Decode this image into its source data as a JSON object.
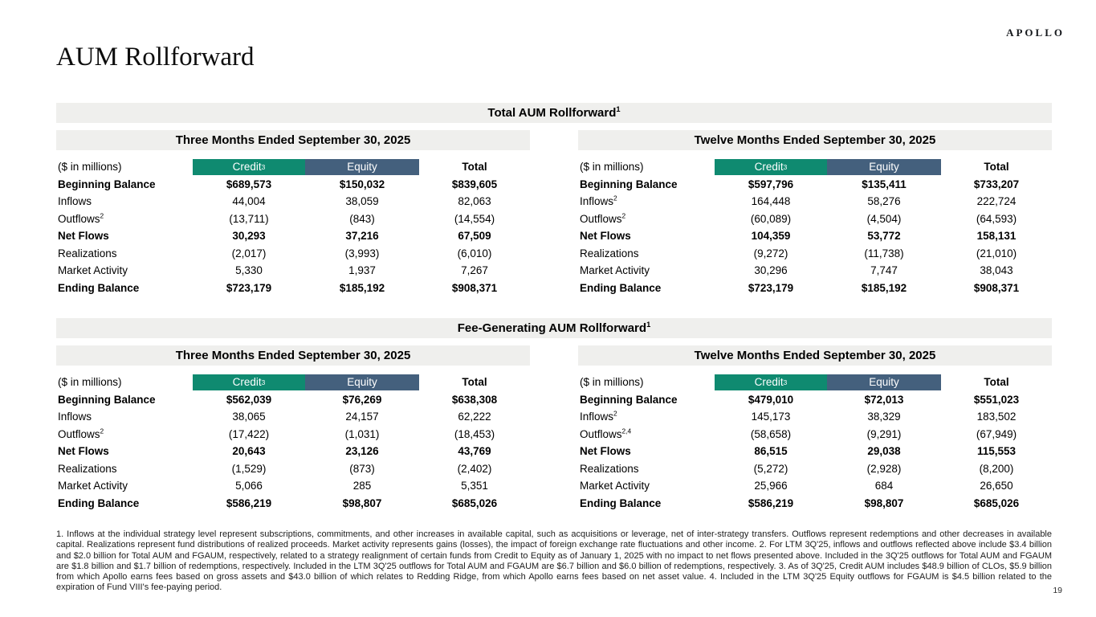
{
  "page": {
    "logo": "APOLLO",
    "title": "AUM Rollforward",
    "page_number": "19"
  },
  "colors": {
    "credit_header": "#0f8a70",
    "equity_header": "#44607d",
    "band_background": "#efefed"
  },
  "sections": [
    {
      "title": "Total AUM Rollforward",
      "title_sup": "1",
      "periods": [
        {
          "heading": "Three Months Ended September 30, 2025",
          "unit_label": "($ in millions)",
          "columns": [
            {
              "label": "Credit",
              "sup": "3"
            },
            {
              "label": "Equity",
              "sup": ""
            },
            {
              "label": "Total",
              "sup": ""
            }
          ],
          "rows": [
            {
              "label": "Beginning Balance",
              "sup": "",
              "bold": true,
              "credit": "$689,573",
              "equity": "$150,032",
              "total": "$839,605"
            },
            {
              "label": "Inflows",
              "sup": "",
              "bold": false,
              "credit": "44,004",
              "equity": "38,059",
              "total": "82,063"
            },
            {
              "label": "Outflows",
              "sup": "2",
              "bold": false,
              "credit": "(13,711)",
              "equity": "(843)",
              "total": "(14,554)"
            },
            {
              "label": "Net Flows",
              "sup": "",
              "bold": true,
              "credit": "30,293",
              "equity": "37,216",
              "total": "67,509"
            },
            {
              "label": "Realizations",
              "sup": "",
              "bold": false,
              "credit": "(2,017)",
              "equity": "(3,993)",
              "total": "(6,010)"
            },
            {
              "label": "Market Activity",
              "sup": "",
              "bold": false,
              "credit": "5,330",
              "equity": "1,937",
              "total": "7,267"
            },
            {
              "label": "Ending Balance",
              "sup": "",
              "bold": true,
              "credit": "$723,179",
              "equity": "$185,192",
              "total": "$908,371"
            }
          ]
        },
        {
          "heading": "Twelve Months Ended September 30, 2025",
          "unit_label": "($ in millions)",
          "columns": [
            {
              "label": "Credit",
              "sup": "3"
            },
            {
              "label": "Equity",
              "sup": ""
            },
            {
              "label": "Total",
              "sup": ""
            }
          ],
          "rows": [
            {
              "label": "Beginning Balance",
              "sup": "",
              "bold": true,
              "credit": "$597,796",
              "equity": "$135,411",
              "total": "$733,207"
            },
            {
              "label": "Inflows",
              "sup": "2",
              "bold": false,
              "credit": "164,448",
              "equity": "58,276",
              "total": "222,724"
            },
            {
              "label": "Outflows",
              "sup": "2",
              "bold": false,
              "credit": "(60,089)",
              "equity": "(4,504)",
              "total": "(64,593)"
            },
            {
              "label": "Net Flows",
              "sup": "",
              "bold": true,
              "credit": "104,359",
              "equity": "53,772",
              "total": "158,131"
            },
            {
              "label": "Realizations",
              "sup": "",
              "bold": false,
              "credit": "(9,272)",
              "equity": "(11,738)",
              "total": "(21,010)"
            },
            {
              "label": "Market Activity",
              "sup": "",
              "bold": false,
              "credit": "30,296",
              "equity": "7,747",
              "total": "38,043"
            },
            {
              "label": "Ending Balance",
              "sup": "",
              "bold": true,
              "credit": "$723,179",
              "equity": "$185,192",
              "total": "$908,371"
            }
          ]
        }
      ]
    },
    {
      "title": "Fee-Generating AUM Rollforward",
      "title_sup": "1",
      "periods": [
        {
          "heading": "Three Months Ended September 30, 2025",
          "unit_label": "($ in millions)",
          "columns": [
            {
              "label": "Credit",
              "sup": "3"
            },
            {
              "label": "Equity",
              "sup": ""
            },
            {
              "label": "Total",
              "sup": ""
            }
          ],
          "rows": [
            {
              "label": "Beginning Balance",
              "sup": "",
              "bold": true,
              "credit": "$562,039",
              "equity": "$76,269",
              "total": "$638,308"
            },
            {
              "label": "Inflows",
              "sup": "",
              "bold": false,
              "credit": "38,065",
              "equity": "24,157",
              "total": "62,222"
            },
            {
              "label": "Outflows",
              "sup": "2",
              "bold": false,
              "credit": "(17,422)",
              "equity": "(1,031)",
              "total": "(18,453)"
            },
            {
              "label": "Net Flows",
              "sup": "",
              "bold": true,
              "credit": "20,643",
              "equity": "23,126",
              "total": "43,769"
            },
            {
              "label": "Realizations",
              "sup": "",
              "bold": false,
              "credit": "(1,529)",
              "equity": "(873)",
              "total": "(2,402)"
            },
            {
              "label": "Market Activity",
              "sup": "",
              "bold": false,
              "credit": "5,066",
              "equity": "285",
              "total": "5,351"
            },
            {
              "label": "Ending Balance",
              "sup": "",
              "bold": true,
              "credit": "$586,219",
              "equity": "$98,807",
              "total": "$685,026"
            }
          ]
        },
        {
          "heading": "Twelve Months Ended September 30, 2025",
          "unit_label": "($ in millions)",
          "columns": [
            {
              "label": "Credit",
              "sup": "3"
            },
            {
              "label": "Equity",
              "sup": ""
            },
            {
              "label": "Total",
              "sup": ""
            }
          ],
          "rows": [
            {
              "label": "Beginning Balance",
              "sup": "",
              "bold": true,
              "credit": "$479,010",
              "equity": "$72,013",
              "total": "$551,023"
            },
            {
              "label": "Inflows",
              "sup": "2",
              "bold": false,
              "credit": "145,173",
              "equity": "38,329",
              "total": "183,502"
            },
            {
              "label": "Outflows",
              "sup": "2,4",
              "bold": false,
              "credit": "(58,658)",
              "equity": "(9,291)",
              "total": "(67,949)"
            },
            {
              "label": "Net Flows",
              "sup": "",
              "bold": true,
              "credit": "86,515",
              "equity": "29,038",
              "total": "115,553"
            },
            {
              "label": "Realizations",
              "sup": "",
              "bold": false,
              "credit": "(5,272)",
              "equity": "(2,928)",
              "total": "(8,200)"
            },
            {
              "label": "Market Activity",
              "sup": "",
              "bold": false,
              "credit": "25,966",
              "equity": "684",
              "total": "26,650"
            },
            {
              "label": "Ending Balance",
              "sup": "",
              "bold": true,
              "credit": "$586,219",
              "equity": "$98,807",
              "total": "$685,026"
            }
          ]
        }
      ]
    }
  ],
  "footnotes": "1. Inflows at the individual strategy level represent subscriptions, commitments, and other increases in available capital, such as acquisitions or leverage, net of inter-strategy transfers. Outflows represent redemptions and other decreases in available capital. Realizations represent fund distributions of realized proceeds. Market activity represents gains (losses), the impact of foreign exchange rate fluctuations and other income. 2. For LTM 3Q'25, inflows and outflows reflected above include $3.4 billion and $2.0 billion for Total AUM and FGAUM, respectively, related to a strategy realignment of certain funds from Credit to Equity as of January 1, 2025 with no impact to net flows presented above. Included in the 3Q'25 outflows for Total AUM and FGAUM are $1.8 billion and $1.7 billion of redemptions, respectively. Included in the LTM 3Q'25 outflows for Total AUM and FGAUM are $6.7 billion and $6.0 billion of redemptions, respectively. 3. As of 3Q'25, Credit AUM includes $48.9 billion of CLOs, $5.9 billion from which Apollo earns fees based on gross assets and $43.0 billion of which relates to Redding Ridge, from which Apollo earns fees based on net asset value. 4. Included in the LTM 3Q'25 Equity outflows for FGAUM is $4.5 billion related to the expiration of Fund VIII's fee-paying period."
}
